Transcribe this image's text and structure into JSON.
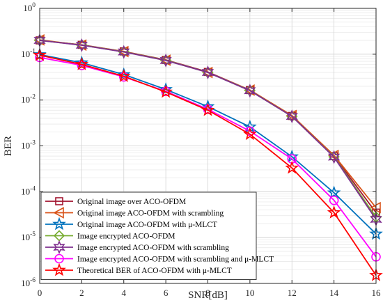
{
  "chart_data": {
    "type": "line",
    "xlabel": "SNR[dB]",
    "ylabel": "BER",
    "xlim": [
      0,
      16
    ],
    "ylim": [
      1e-06,
      1
    ],
    "yscale": "log",
    "grid": true,
    "legend_position": "bottom-left",
    "x": [
      0,
      2,
      4,
      6,
      8,
      10,
      12,
      14,
      16
    ],
    "x_ticks": [
      "0",
      "2",
      "4",
      "6",
      "8",
      "10",
      "12",
      "14",
      "16"
    ],
    "y_ticks": [
      {
        "base": "10",
        "exp": "0",
        "value": 1
      },
      {
        "base": "10",
        "exp": "-1",
        "value": 0.1
      },
      {
        "base": "10",
        "exp": "-2",
        "value": 0.01
      },
      {
        "base": "10",
        "exp": "-3",
        "value": 0.001
      },
      {
        "base": "10",
        "exp": "-4",
        "value": 0.0001
      },
      {
        "base": "10",
        "exp": "-5",
        "value": 1e-05
      },
      {
        "base": "10",
        "exp": "-6",
        "value": 1e-06
      }
    ],
    "series": [
      {
        "name": "Original image over ACO-OFDM",
        "color": "#A2142F",
        "marker": "square",
        "values": [
          0.2,
          0.16,
          0.115,
          0.075,
          0.041,
          0.0165,
          0.0045,
          0.0006,
          3.5e-05
        ]
      },
      {
        "name": "Original image ACO-OFDM with scrambling",
        "color": "#D95319",
        "marker": "triangle-left",
        "values": [
          0.205,
          0.158,
          0.114,
          0.074,
          0.04,
          0.0165,
          0.0046,
          0.00062,
          4.5e-05
        ]
      },
      {
        "name": "Original image ACO-OFDM with μ-MLCT",
        "color": "#0072BD",
        "marker": "star",
        "values": [
          0.098,
          0.065,
          0.036,
          0.017,
          0.0072,
          0.0026,
          0.00058,
          9.5e-05,
          1.2e-05
        ]
      },
      {
        "name": "Image encrypted ACO-OFDM",
        "color": "#77AC30",
        "marker": "diamond",
        "values": [
          0.2,
          0.158,
          0.113,
          0.074,
          0.04,
          0.0162,
          0.0044,
          0.00058,
          2.8e-05
        ]
      },
      {
        "name": "Image encrypted ACO-OFDM with scrambling",
        "color": "#7E2F8E",
        "marker": "star6",
        "values": [
          0.2,
          0.157,
          0.112,
          0.073,
          0.04,
          0.016,
          0.0044,
          0.00057,
          2.5e-05
        ]
      },
      {
        "name": "Image encrypted ACO-OFDM with scrambling and μ-MLCT",
        "color": "#FF00FF",
        "marker": "circle",
        "values": [
          0.085,
          0.057,
          0.032,
          0.0155,
          0.0063,
          0.0021,
          0.00052,
          6.5e-05,
          3.8e-06
        ]
      },
      {
        "name": "Theoretical  BER of ACO-OFDM with μ-MLCT",
        "color": "#FF0000",
        "marker": "star",
        "values": [
          0.095,
          0.06,
          0.033,
          0.015,
          0.006,
          0.0018,
          0.00033,
          3.5e-05,
          1.5e-06
        ]
      }
    ]
  }
}
